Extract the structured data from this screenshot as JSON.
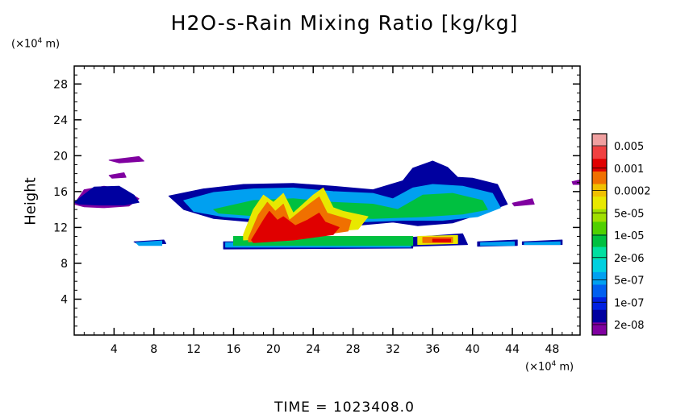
{
  "chart_data": {
    "type": "heatmap",
    "title": "H2O-s-Rain Mixing Ratio [kg/kg]",
    "ylabel": "Height",
    "xunit": "(×10⁴ m)",
    "yunit": "(×10⁴ m)",
    "xunit_prefix": "(×10",
    "xunit_exp": "4",
    "xunit_suffix": " m)",
    "yunit_prefix": "(×10",
    "yunit_exp": "4",
    "yunit_suffix": " m)",
    "xlim": [
      0,
      50.8
    ],
    "ylim": [
      0,
      30
    ],
    "xticks": [
      "4",
      "8",
      "12",
      "16",
      "20",
      "24",
      "28",
      "32",
      "36",
      "40",
      "44",
      "48"
    ],
    "xtick_values": [
      4,
      8,
      12,
      16,
      20,
      24,
      28,
      32,
      36,
      40,
      44,
      48
    ],
    "yticks": [
      "4",
      "8",
      "12",
      "16",
      "20",
      "24",
      "28"
    ],
    "ytick_values": [
      4,
      8,
      12,
      16,
      20,
      24,
      28
    ],
    "colorbar": {
      "labels": [
        "0.005",
        "0.001",
        "0.0002",
        "5e-05",
        "1e-05",
        "2e-06",
        "5e-07",
        "1e-07",
        "2e-08"
      ],
      "colors": [
        "#f0a0a0",
        "#f04040",
        "#e00000",
        "#f07000",
        "#f0c000",
        "#e8e800",
        "#a0e000",
        "#50d000",
        "#00c040",
        "#00e0a0",
        "#00d0e0",
        "#00a0f0",
        "#0060f0",
        "#0020e0",
        "#0000a0",
        "#8000a0"
      ]
    },
    "regions": [
      {
        "level": 1,
        "color": "#8000a0",
        "points": [
          [
            0,
            14.6
          ],
          [
            1,
            16.2
          ],
          [
            3,
            16.6
          ],
          [
            5,
            16.2
          ],
          [
            6.5,
            15.2
          ],
          [
            5.5,
            14.4
          ],
          [
            3,
            14.2
          ],
          [
            1,
            14.3
          ]
        ]
      },
      {
        "level": 1,
        "color": "#8000a0",
        "points": [
          [
            3.5,
            19.5
          ],
          [
            6.5,
            19.9
          ],
          [
            7,
            19.4
          ],
          [
            4.5,
            19.2
          ]
        ]
      },
      {
        "level": 1,
        "color": "#8000a0",
        "points": [
          [
            3.5,
            17.8
          ],
          [
            5,
            18.1
          ],
          [
            5.2,
            17.6
          ],
          [
            3.8,
            17.5
          ]
        ]
      },
      {
        "level": 1,
        "color": "#8000a0",
        "points": [
          [
            44,
            14.7
          ],
          [
            46,
            15.2
          ],
          [
            46.2,
            14.6
          ],
          [
            44.2,
            14.4
          ]
        ]
      },
      {
        "level": 1,
        "color": "#8000a0",
        "points": [
          [
            50,
            17.1
          ],
          [
            50.8,
            17.3
          ],
          [
            50.8,
            16.8
          ],
          [
            50.1,
            16.8
          ]
        ]
      },
      {
        "level": 2,
        "color": "#0000a0",
        "points": [
          [
            0,
            14.8
          ],
          [
            2,
            16.5
          ],
          [
            4.5,
            16.6
          ],
          [
            6,
            15.6
          ],
          [
            6.5,
            14.8
          ],
          [
            5,
            14.5
          ],
          [
            2.5,
            14.5
          ],
          [
            0.5,
            14.6
          ]
        ]
      },
      {
        "level": 2,
        "color": "#0000a0",
        "points": [
          [
            9.5,
            15.5
          ],
          [
            13,
            16.3
          ],
          [
            17,
            16.8
          ],
          [
            22,
            16.9
          ],
          [
            26,
            16.6
          ],
          [
            30,
            16.2
          ],
          [
            33,
            17.2
          ],
          [
            34,
            18.6
          ],
          [
            36,
            19.4
          ],
          [
            37.5,
            18.7
          ],
          [
            38.5,
            17.6
          ],
          [
            40,
            17.5
          ],
          [
            42.5,
            16.8
          ],
          [
            43.5,
            14.6
          ],
          [
            41,
            13.6
          ],
          [
            38,
            12.5
          ],
          [
            34.5,
            12.2
          ],
          [
            32,
            12.6
          ],
          [
            28,
            12.2
          ],
          [
            20,
            12.4
          ],
          [
            14,
            13
          ],
          [
            11,
            14
          ]
        ]
      },
      {
        "level": 2,
        "color": "#0000a0",
        "points": [
          [
            6,
            10.4
          ],
          [
            9,
            10.6
          ],
          [
            9.2,
            10.2
          ],
          [
            6.5,
            10.1
          ]
        ]
      },
      {
        "level": 2,
        "color": "#0000a0",
        "points": [
          [
            15,
            10.4
          ],
          [
            34,
            10.5
          ],
          [
            34,
            9.7
          ],
          [
            15,
            9.6
          ]
        ]
      },
      {
        "level": 2,
        "color": "#0000a0",
        "points": [
          [
            34,
            10.9
          ],
          [
            39,
            11.3
          ],
          [
            39.5,
            10.1
          ],
          [
            34,
            9.9
          ]
        ]
      },
      {
        "level": 2,
        "color": "#0000a0",
        "points": [
          [
            40.5,
            10.4
          ],
          [
            44.5,
            10.6
          ],
          [
            44.5,
            10
          ],
          [
            40.5,
            9.9
          ]
        ]
      },
      {
        "level": 2,
        "color": "#0000a0",
        "points": [
          [
            45,
            10.4
          ],
          [
            49,
            10.6
          ],
          [
            49,
            10.1
          ],
          [
            45,
            10.1
          ]
        ]
      },
      {
        "level": 3,
        "color": "#00a0f0",
        "points": [
          [
            11,
            15
          ],
          [
            14,
            15.9
          ],
          [
            18,
            16.3
          ],
          [
            22,
            16.4
          ],
          [
            26,
            16
          ],
          [
            30,
            15.8
          ],
          [
            32,
            15.2
          ],
          [
            34,
            16.4
          ],
          [
            36,
            16.8
          ],
          [
            39,
            16.6
          ],
          [
            42,
            15.8
          ],
          [
            42.8,
            14.2
          ],
          [
            40.5,
            13.2
          ],
          [
            37,
            12.8
          ],
          [
            33,
            12.8
          ],
          [
            28,
            12.6
          ],
          [
            20,
            12.8
          ],
          [
            15,
            13.2
          ],
          [
            12,
            13.8
          ]
        ]
      },
      {
        "level": 3,
        "color": "#00a0f0",
        "points": [
          [
            6.2,
            10.3
          ],
          [
            8.8,
            10.5
          ],
          [
            8.8,
            10
          ],
          [
            6.5,
            10
          ]
        ]
      },
      {
        "level": 3,
        "color": "#00a0f0",
        "points": [
          [
            15.2,
            10.3
          ],
          [
            33.8,
            10.3
          ],
          [
            33.8,
            9.8
          ],
          [
            15.2,
            9.8
          ]
        ]
      },
      {
        "level": 3,
        "color": "#00a0f0",
        "points": [
          [
            40.8,
            10.3
          ],
          [
            44.2,
            10.4
          ],
          [
            44.2,
            10
          ],
          [
            40.8,
            10
          ]
        ]
      },
      {
        "level": 3,
        "color": "#00a0f0",
        "points": [
          [
            45.2,
            10.3
          ],
          [
            48.8,
            10.4
          ],
          [
            48.8,
            10.1
          ],
          [
            45.2,
            10.1
          ]
        ]
      },
      {
        "level": 4,
        "color": "#00c040",
        "points": [
          [
            14,
            14
          ],
          [
            18,
            15
          ],
          [
            22,
            15.2
          ],
          [
            26,
            14.8
          ],
          [
            30,
            14.6
          ],
          [
            32.5,
            14
          ],
          [
            35,
            15.6
          ],
          [
            38,
            15.8
          ],
          [
            41,
            15
          ],
          [
            41.5,
            14
          ],
          [
            39,
            13.5
          ],
          [
            35,
            13.2
          ],
          [
            30,
            13
          ],
          [
            24,
            13.2
          ],
          [
            18,
            13.3
          ],
          [
            14.5,
            13.6
          ]
        ]
      },
      {
        "level": 4,
        "color": "#00c040",
        "points": [
          [
            16,
            11
          ],
          [
            34,
            11
          ],
          [
            34,
            10
          ],
          [
            16,
            10
          ]
        ]
      },
      {
        "level": 5,
        "color": "#e8e800",
        "points": [
          [
            17,
            11.2
          ],
          [
            18,
            14
          ],
          [
            19,
            15.6
          ],
          [
            20,
            14.8
          ],
          [
            21,
            15.8
          ],
          [
            22,
            13.6
          ],
          [
            24,
            15.6
          ],
          [
            25,
            16.4
          ],
          [
            26,
            14.2
          ],
          [
            27,
            13.8
          ],
          [
            29.5,
            13.2
          ],
          [
            28.5,
            11.8
          ],
          [
            26,
            11.6
          ],
          [
            23,
            10.9
          ],
          [
            20,
            10.8
          ],
          [
            17,
            10.6
          ]
        ]
      },
      {
        "level": 5,
        "color": "#e8e800",
        "points": [
          [
            34.5,
            11
          ],
          [
            38.5,
            11.1
          ],
          [
            38.5,
            10.2
          ],
          [
            34.5,
            10.1
          ]
        ]
      },
      {
        "level": 6,
        "color": "#f07000",
        "points": [
          [
            17.5,
            10.8
          ],
          [
            18.5,
            13.4
          ],
          [
            19.4,
            14.8
          ],
          [
            20.2,
            13.8
          ],
          [
            21,
            14.6
          ],
          [
            21.6,
            12.8
          ],
          [
            23.6,
            14.6
          ],
          [
            24.6,
            15.4
          ],
          [
            25.4,
            13.6
          ],
          [
            27.8,
            12.8
          ],
          [
            27.5,
            11.6
          ],
          [
            25,
            11.2
          ],
          [
            21,
            10.6
          ],
          [
            17.5,
            10.4
          ]
        ]
      },
      {
        "level": 6,
        "color": "#f07000",
        "points": [
          [
            35,
            10.9
          ],
          [
            38,
            10.9
          ],
          [
            38,
            10.3
          ],
          [
            35,
            10.3
          ]
        ]
      },
      {
        "level": 7,
        "color": "#e00000",
        "points": [
          [
            17.8,
            10.6
          ],
          [
            19,
            12.8
          ],
          [
            19.6,
            13.8
          ],
          [
            20.4,
            12.8
          ],
          [
            21,
            13.2
          ],
          [
            22.2,
            12.2
          ],
          [
            23.4,
            12.8
          ],
          [
            24.6,
            13.6
          ],
          [
            25.2,
            12.6
          ],
          [
            26.6,
            12
          ],
          [
            26,
            11.2
          ],
          [
            22,
            10.6
          ],
          [
            18,
            10.3
          ]
        ]
      },
      {
        "level": 7,
        "color": "#e00000",
        "points": [
          [
            36,
            10.7
          ],
          [
            37.8,
            10.7
          ],
          [
            37.8,
            10.4
          ],
          [
            36,
            10.4
          ]
        ]
      }
    ]
  }
}
